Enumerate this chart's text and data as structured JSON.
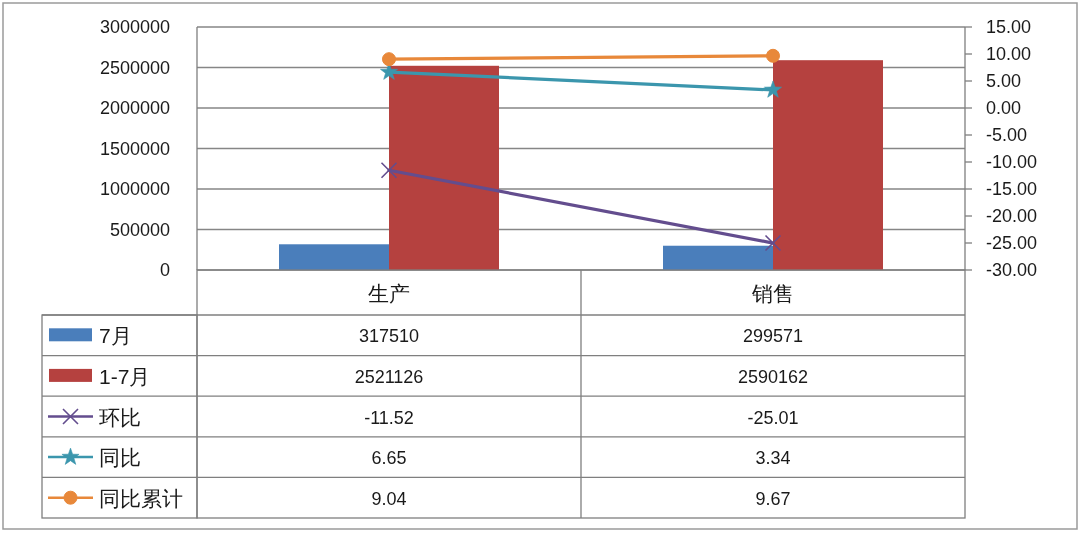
{
  "chart_data": {
    "type": "bar",
    "categories": [
      "生产",
      "销售"
    ],
    "series": [
      {
        "name": "7月",
        "color": "#4a7ebb",
        "values": [
          317510,
          299571
        ]
      },
      {
        "name": "1-7月",
        "color": "#b5413f",
        "values": [
          2521126,
          2590162
        ]
      },
      {
        "name": "环比",
        "type": "line",
        "axis": "y2",
        "color": "#634d8e",
        "marker": "cross",
        "values": [
          -11.52,
          -25.01
        ]
      },
      {
        "name": "同比",
        "type": "line",
        "axis": "y2",
        "color": "#3b96ad",
        "marker": "star",
        "values": [
          6.65,
          3.34
        ]
      },
      {
        "name": "同比累计",
        "type": "line",
        "axis": "y2",
        "color": "#e8883a",
        "marker": "circle",
        "values": [
          9.04,
          9.67
        ]
      }
    ],
    "ylim": [
      0,
      3000000
    ],
    "yticks": [
      0,
      500000,
      1000000,
      1500000,
      2000000,
      2500000,
      3000000
    ],
    "y2lim": [
      -30,
      15
    ],
    "y2ticks": [
      {
        "value": -30,
        "label": "-30.00"
      },
      {
        "value": -25,
        "label": "-25.00"
      },
      {
        "value": -20,
        "label": "-20.00"
      },
      {
        "value": -15,
        "label": "-15.00"
      },
      {
        "value": -10,
        "label": "-10.00"
      },
      {
        "value": -5,
        "label": "-5.00"
      },
      {
        "value": 0,
        "label": "0.00"
      },
      {
        "value": 5,
        "label": "5.00"
      },
      {
        "value": 10,
        "label": "10.00"
      },
      {
        "value": 15,
        "label": "15.00"
      }
    ],
    "grid": "y",
    "legend": "bottom left",
    "data_labels": true,
    "line_style": "solid"
  }
}
